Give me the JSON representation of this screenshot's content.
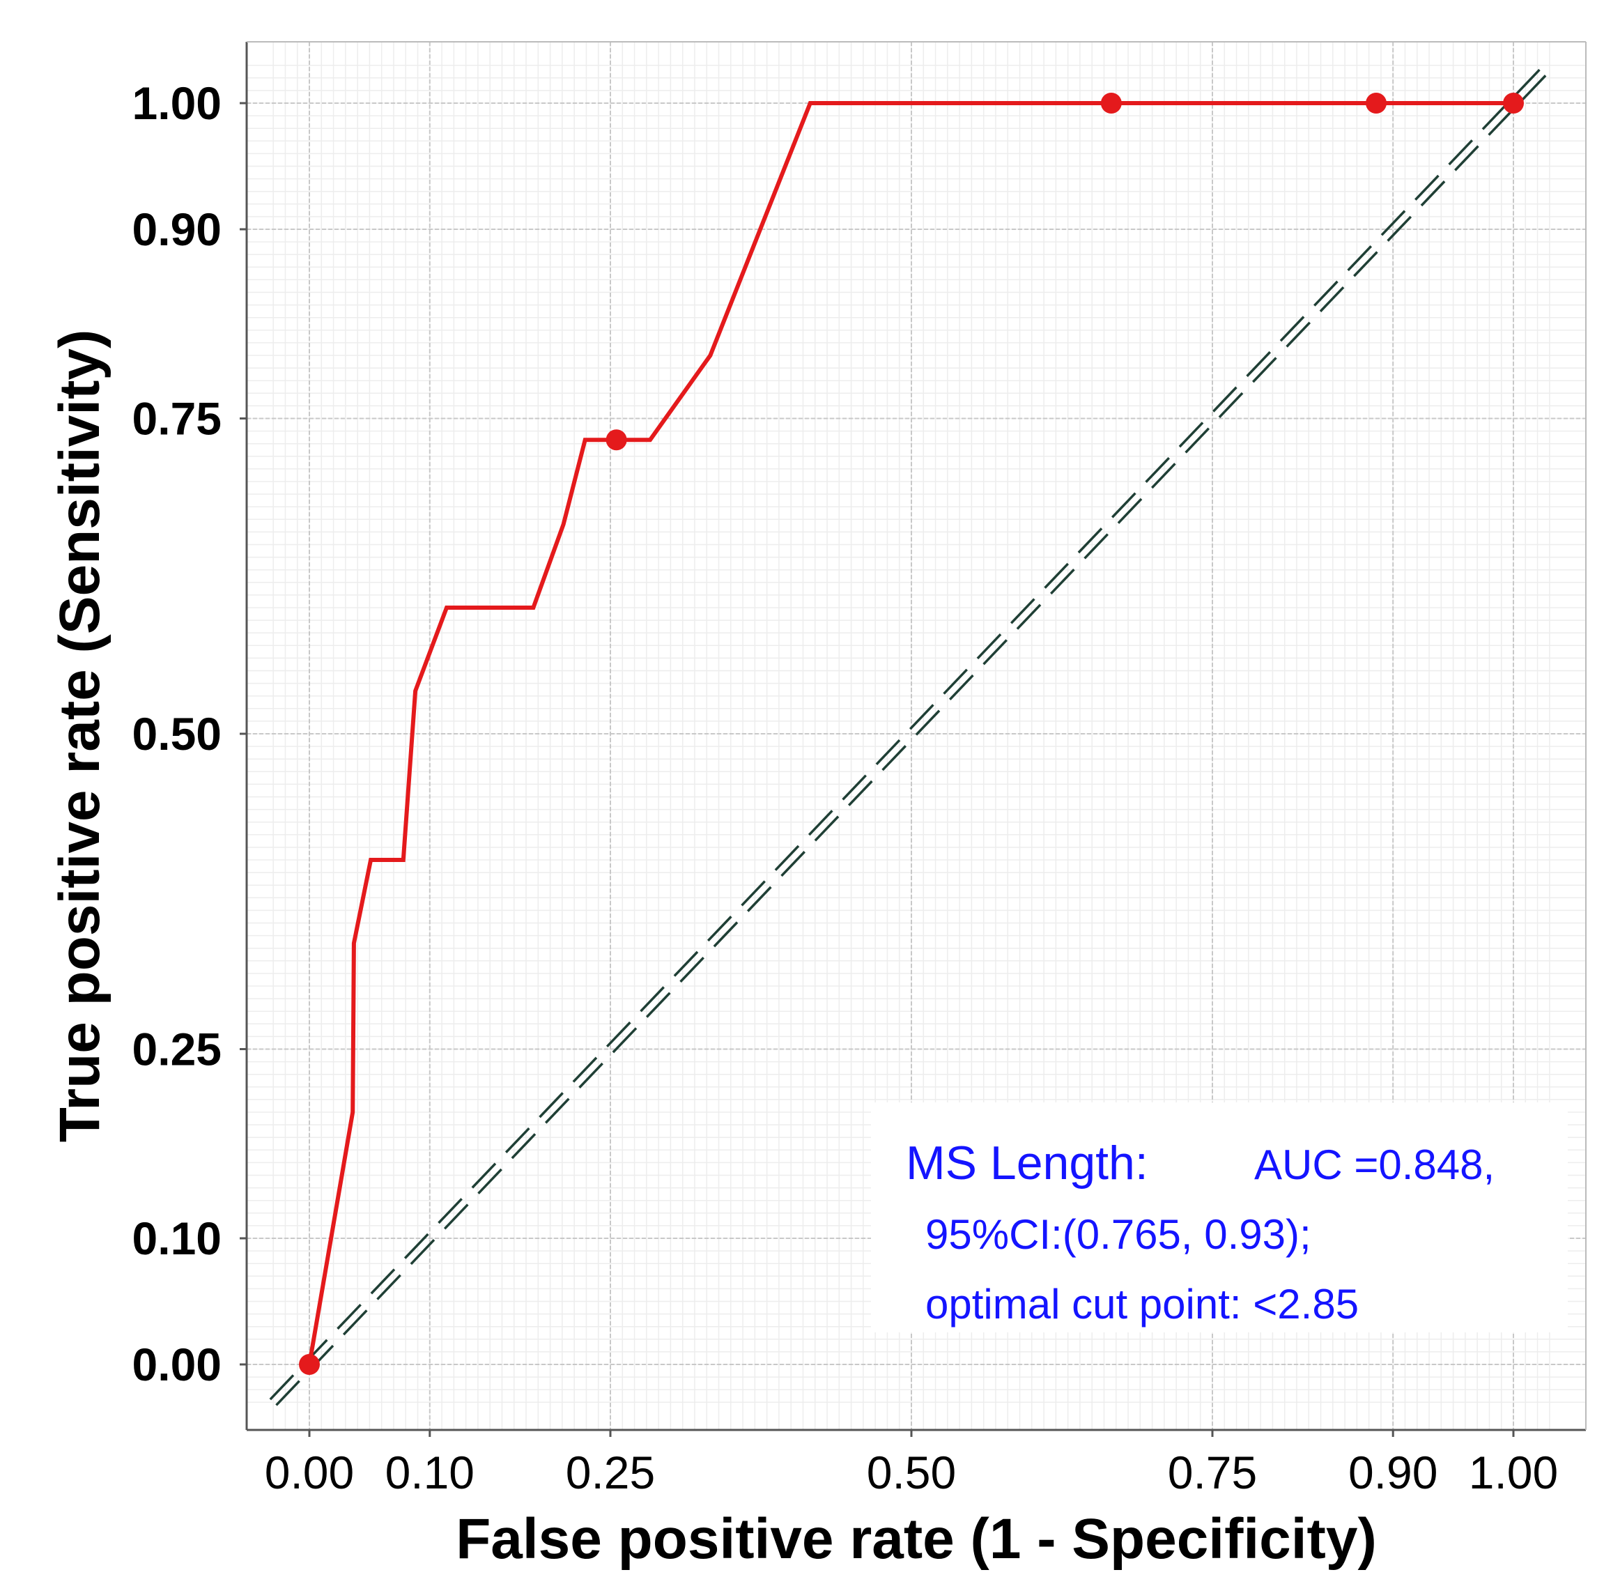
{
  "chart_data": {
    "type": "line",
    "title": "",
    "xlabel": "False positive rate (1 - Specificity)",
    "ylabel": "True positive rate (Sensitivity)",
    "xlim": [
      -0.05,
      1.05
    ],
    "ylim": [
      -0.05,
      1.05
    ],
    "x_ticks": [
      0.0,
      0.1,
      0.25,
      0.5,
      0.75,
      0.9,
      1.0
    ],
    "x_tick_labels": [
      "0.00",
      "0.10",
      "0.25",
      "0.50",
      "0.75",
      "0.90",
      "1.00"
    ],
    "y_ticks": [
      0.0,
      0.1,
      0.25,
      0.5,
      0.75,
      0.9,
      1.0
    ],
    "y_tick_labels": [
      "0.00",
      "0.10",
      "0.25",
      "0.50",
      "0.75",
      "0.90",
      "1.00"
    ],
    "grid": true,
    "series": [
      {
        "name": "MS Length",
        "color": "#e41a1c",
        "x": [
          0.0,
          0.036,
          0.037,
          0.051,
          0.078,
          0.088,
          0.114,
          0.186,
          0.211,
          0.229,
          0.283,
          0.333,
          0.416,
          0.666,
          0.886,
          1.0
        ],
        "y": [
          0.0,
          0.2,
          0.334,
          0.4,
          0.4,
          0.534,
          0.6,
          0.6,
          0.666,
          0.733,
          0.733,
          0.8,
          1.0,
          1.0,
          1.0,
          1.0
        ]
      }
    ],
    "markers": {
      "color": "#e41a1c",
      "x": [
        0.0,
        0.255,
        0.666,
        0.886,
        1.0
      ],
      "y": [
        0.0,
        0.733,
        1.0,
        1.0,
        1.0
      ]
    },
    "reference_line": {
      "x": [
        -0.03,
        1.03
      ],
      "y": [
        -0.03,
        1.03
      ],
      "color": "#1f3f35",
      "style": "double-dashed"
    },
    "annotation": {
      "color": "#1414ff",
      "model": "MS Length:",
      "auc": "AUC =0.848,",
      "ci": "95%CI:(0.765, 0.93);",
      "cut": "optimal cut point: <2.85"
    }
  }
}
